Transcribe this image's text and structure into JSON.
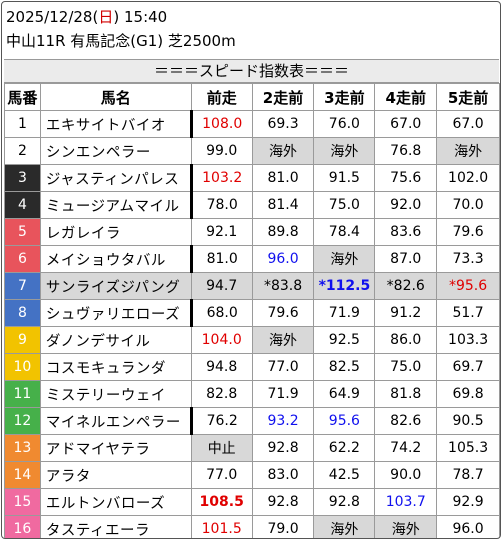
{
  "header": {
    "date": "2025/12/28",
    "dow_open": "(",
    "dow": "日",
    "dow_close": ")",
    "time": "15:40",
    "race": "中山11R 有馬記念(G1) 芝2500m"
  },
  "banner": "＝＝＝スピード指数表＝＝＝",
  "columns": [
    "馬番",
    "馬名",
    "前走",
    "2走前",
    "3走前",
    "4走前",
    "5走前"
  ],
  "rows": [
    {
      "num": "1",
      "name": "エキサイトバイオ",
      "marked": true,
      "v": [
        {
          "t": "108.0",
          "c": "red"
        },
        {
          "t": "69.3"
        },
        {
          "t": "76.0"
        },
        {
          "t": "67.0"
        },
        {
          "t": "67.0"
        }
      ]
    },
    {
      "num": "2",
      "name": "シンエンペラー",
      "v": [
        {
          "t": "99.0"
        },
        {
          "t": "海外",
          "g": true
        },
        {
          "t": "海外",
          "g": true
        },
        {
          "t": "76.8"
        },
        {
          "t": "海外",
          "g": true
        }
      ]
    },
    {
      "num": "3",
      "name": "ジャスティンパレス",
      "marked": true,
      "v": [
        {
          "t": "103.2",
          "c": "red"
        },
        {
          "t": "81.0"
        },
        {
          "t": "91.5"
        },
        {
          "t": "75.6"
        },
        {
          "t": "102.0"
        }
      ]
    },
    {
      "num": "4",
      "name": "ミュージアムマイル",
      "marked": true,
      "v": [
        {
          "t": "78.0"
        },
        {
          "t": "81.4"
        },
        {
          "t": "75.0"
        },
        {
          "t": "92.0"
        },
        {
          "t": "70.0"
        }
      ]
    },
    {
      "num": "5",
      "name": "レガレイラ",
      "v": [
        {
          "t": "92.1"
        },
        {
          "t": "89.8"
        },
        {
          "t": "78.4"
        },
        {
          "t": "83.6"
        },
        {
          "t": "79.6"
        }
      ]
    },
    {
      "num": "6",
      "name": "メイショウタバル",
      "marked": true,
      "v": [
        {
          "t": "81.0"
        },
        {
          "t": "96.0",
          "c": "blue"
        },
        {
          "t": "海外",
          "g": true
        },
        {
          "t": "87.0"
        },
        {
          "t": "73.3"
        }
      ]
    },
    {
      "num": "7",
      "name": "サンライズジパング",
      "rowgray": true,
      "v": [
        {
          "t": "94.7"
        },
        {
          "t": "*83.8"
        },
        {
          "t": "*112.5",
          "c": "blue",
          "b": true
        },
        {
          "t": "*82.6"
        },
        {
          "t": "*95.6",
          "c": "red"
        }
      ]
    },
    {
      "num": "8",
      "name": "シュヴァリエローズ",
      "marked": true,
      "v": [
        {
          "t": "68.0"
        },
        {
          "t": "79.6"
        },
        {
          "t": "71.9"
        },
        {
          "t": "91.2"
        },
        {
          "t": "51.7"
        }
      ]
    },
    {
      "num": "9",
      "name": "ダノンデサイル",
      "v": [
        {
          "t": "104.0",
          "c": "red"
        },
        {
          "t": "海外",
          "g": true
        },
        {
          "t": "92.5"
        },
        {
          "t": "86.0"
        },
        {
          "t": "103.3"
        }
      ]
    },
    {
      "num": "10",
      "name": "コスモキュランダ",
      "v": [
        {
          "t": "94.8"
        },
        {
          "t": "77.0"
        },
        {
          "t": "82.5"
        },
        {
          "t": "75.0"
        },
        {
          "t": "69.7"
        }
      ]
    },
    {
      "num": "11",
      "name": "ミステリーウェイ",
      "v": [
        {
          "t": "82.8"
        },
        {
          "t": "71.9"
        },
        {
          "t": "64.9"
        },
        {
          "t": "81.8"
        },
        {
          "t": "69.8"
        }
      ]
    },
    {
      "num": "12",
      "name": "マイネルエンペラー",
      "marked": true,
      "v": [
        {
          "t": "76.2"
        },
        {
          "t": "93.2",
          "c": "blue"
        },
        {
          "t": "95.6",
          "c": "blue"
        },
        {
          "t": "82.6"
        },
        {
          "t": "90.5"
        }
      ]
    },
    {
      "num": "13",
      "name": "アドマイヤテラ",
      "v": [
        {
          "t": "中止",
          "g": true
        },
        {
          "t": "92.8"
        },
        {
          "t": "62.2"
        },
        {
          "t": "74.2"
        },
        {
          "t": "105.3"
        }
      ]
    },
    {
      "num": "14",
      "name": "アラタ",
      "v": [
        {
          "t": "77.0"
        },
        {
          "t": "83.0"
        },
        {
          "t": "42.5"
        },
        {
          "t": "90.0"
        },
        {
          "t": "78.7"
        }
      ]
    },
    {
      "num": "15",
      "name": "エルトンバローズ",
      "v": [
        {
          "t": "108.5",
          "c": "red",
          "b": true
        },
        {
          "t": "92.8"
        },
        {
          "t": "92.8"
        },
        {
          "t": "103.7",
          "c": "blue"
        },
        {
          "t": "92.9"
        }
      ]
    },
    {
      "num": "16",
      "name": "タスティエーラ",
      "v": [
        {
          "t": "101.5",
          "c": "red"
        },
        {
          "t": "79.0"
        },
        {
          "t": "海外",
          "g": true
        },
        {
          "t": "海外",
          "g": true
        },
        {
          "t": "96.0"
        }
      ]
    }
  ]
}
